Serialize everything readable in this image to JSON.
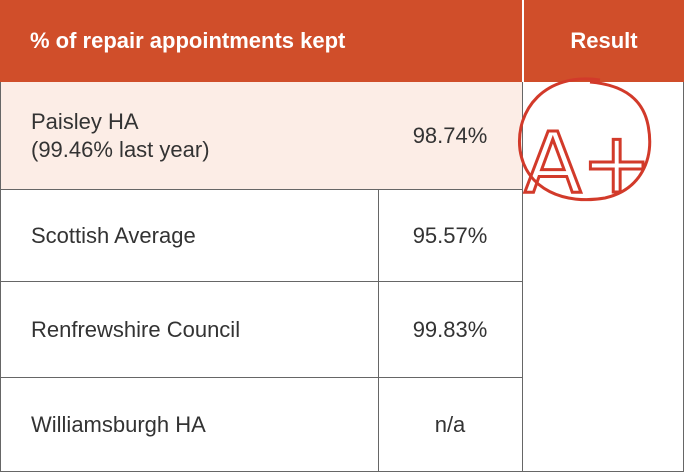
{
  "table": {
    "header": [
      "% of repair appointments kept",
      "Result"
    ],
    "rows": [
      {
        "name": "Paisley HA",
        "note": "(99.46% last year)",
        "value": "98.74%"
      },
      {
        "name": "Scottish Average",
        "value": "95.57%"
      },
      {
        "name": "Renfrewshire Council",
        "value": "99.83%"
      },
      {
        "name": "Williamsburgh HA",
        "value": "n/a"
      }
    ],
    "result": "A+"
  }
}
